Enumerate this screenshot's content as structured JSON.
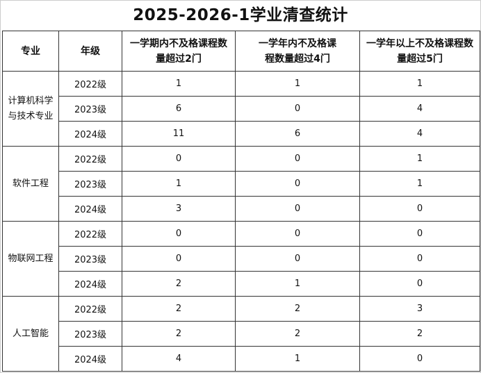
{
  "title": "2025-2026-1学业清查统计",
  "headers": [
    "专业",
    "年级",
    "一学期内不及格课程数量超过2门",
    "一学年内不及格课程数量超过4门",
    "一学年以上不及格课程数量超过5门"
  ],
  "groups": [
    {
      "major": "计算机科学与技术专业",
      "rows": [
        {
          "grade": "2022级",
          "v": [
            "1",
            "1",
            "1"
          ]
        },
        {
          "grade": "2023级",
          "v": [
            "6",
            "0",
            "4"
          ]
        },
        {
          "grade": "2024级",
          "v": [
            "11",
            "6",
            "4"
          ]
        }
      ]
    },
    {
      "major": "软件工程",
      "rows": [
        {
          "grade": "2022级",
          "v": [
            "0",
            "0",
            "1"
          ]
        },
        {
          "grade": "2023级",
          "v": [
            "1",
            "0",
            "1"
          ]
        },
        {
          "grade": "2024级",
          "v": [
            "3",
            "0",
            "0"
          ]
        }
      ]
    },
    {
      "major": "物联网工程",
      "rows": [
        {
          "grade": "2022级",
          "v": [
            "0",
            "0",
            "0"
          ]
        },
        {
          "grade": "2023级",
          "v": [
            "0",
            "0",
            "0"
          ]
        },
        {
          "grade": "2024级",
          "v": [
            "2",
            "1",
            "0"
          ]
        }
      ]
    },
    {
      "major": "人工智能",
      "rows": [
        {
          "grade": "2022级",
          "v": [
            "2",
            "2",
            "3"
          ]
        },
        {
          "grade": "2023级",
          "v": [
            "2",
            "2",
            "2"
          ]
        },
        {
          "grade": "2024级",
          "v": [
            "4",
            "1",
            "0"
          ]
        }
      ]
    }
  ]
}
